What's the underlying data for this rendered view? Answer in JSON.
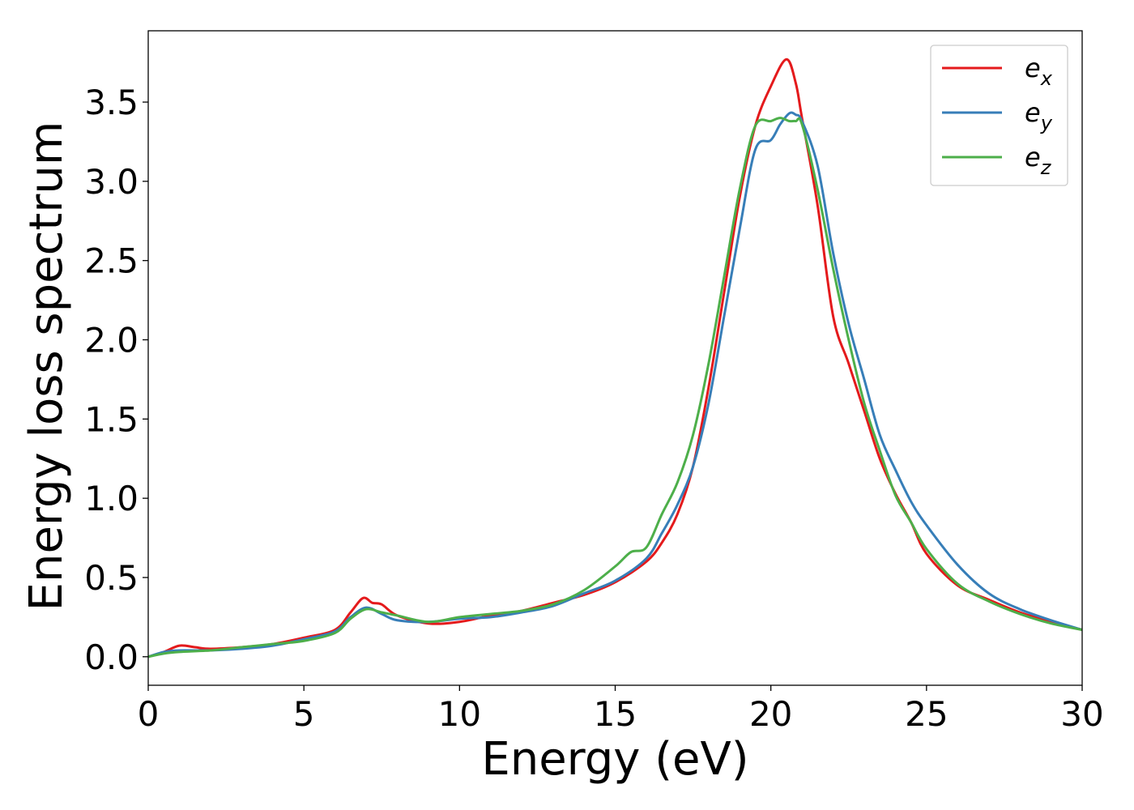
{
  "chart_data": {
    "type": "line",
    "title": "",
    "xlabel": "Energy (eV)",
    "ylabel": "Energy loss spectrum",
    "xlim": [
      0,
      30
    ],
    "ylim": [
      -0.18,
      3.95
    ],
    "xticks": [
      0,
      5,
      10,
      15,
      20,
      25,
      30
    ],
    "xtick_labels": [
      "0",
      "5",
      "10",
      "15",
      "20",
      "25",
      "30"
    ],
    "yticks": [
      0.0,
      0.5,
      1.0,
      1.5,
      2.0,
      2.5,
      3.0,
      3.5
    ],
    "ytick_labels": [
      "0.0",
      "0.5",
      "1.0",
      "1.5",
      "2.0",
      "2.5",
      "3.0",
      "3.5"
    ],
    "grid": false,
    "legend_position": "top-right",
    "series": [
      {
        "name": "e_x",
        "label_base": "e",
        "label_sub": "x",
        "color": "#e41a1c",
        "x": [
          0,
          0.5,
          1.0,
          1.5,
          2,
          3,
          4,
          5,
          6,
          6.5,
          6.9,
          7.2,
          7.5,
          8,
          9,
          10,
          11,
          12,
          13,
          14,
          15,
          16,
          16.5,
          17,
          17.5,
          18,
          18.5,
          19,
          19.5,
          20,
          20.5,
          20.8,
          21,
          21.5,
          22,
          22.5,
          23,
          23.5,
          24,
          24.5,
          25,
          26,
          27,
          28,
          29,
          30
        ],
        "y": [
          0.0,
          0.03,
          0.07,
          0.06,
          0.05,
          0.06,
          0.08,
          0.12,
          0.17,
          0.28,
          0.37,
          0.34,
          0.33,
          0.26,
          0.21,
          0.22,
          0.26,
          0.29,
          0.34,
          0.39,
          0.47,
          0.6,
          0.72,
          0.9,
          1.2,
          1.7,
          2.3,
          2.9,
          3.35,
          3.6,
          3.77,
          3.62,
          3.4,
          2.85,
          2.15,
          1.85,
          1.55,
          1.25,
          1.03,
          0.85,
          0.65,
          0.45,
          0.36,
          0.28,
          0.22,
          0.17
        ]
      },
      {
        "name": "e_y",
        "label_base": "e",
        "label_sub": "y",
        "color": "#377eb8",
        "x": [
          0,
          0.5,
          1.0,
          2,
          3,
          4,
          5,
          6,
          6.5,
          7.0,
          7.5,
          8,
          9,
          10,
          11,
          12,
          13,
          14,
          15,
          16,
          16.5,
          17,
          17.5,
          18,
          18.5,
          19,
          19.5,
          20,
          20.3,
          20.6,
          20.8,
          21,
          21.5,
          22,
          22.5,
          23,
          23.5,
          24,
          24.5,
          25,
          26,
          27,
          28,
          29,
          30
        ],
        "y": [
          0.0,
          0.03,
          0.04,
          0.04,
          0.05,
          0.07,
          0.11,
          0.16,
          0.25,
          0.31,
          0.27,
          0.23,
          0.22,
          0.24,
          0.25,
          0.28,
          0.32,
          0.4,
          0.48,
          0.62,
          0.78,
          0.96,
          1.2,
          1.6,
          2.15,
          2.7,
          3.2,
          3.26,
          3.36,
          3.43,
          3.42,
          3.38,
          3.1,
          2.55,
          2.1,
          1.75,
          1.4,
          1.18,
          0.98,
          0.83,
          0.58,
          0.4,
          0.3,
          0.23,
          0.17
        ]
      },
      {
        "name": "e_z",
        "label_base": "e",
        "label_sub": "z",
        "color": "#4daf4a",
        "x": [
          0,
          0.5,
          1.0,
          2,
          3,
          4,
          5,
          6,
          6.5,
          7.0,
          7.5,
          8,
          9,
          10,
          11,
          12,
          13,
          14,
          15,
          15.5,
          16,
          16.5,
          17,
          17.5,
          18,
          18.5,
          19,
          19.5,
          20,
          20.3,
          20.6,
          20.8,
          21,
          21.5,
          22,
          22.5,
          23,
          23.5,
          24,
          24.5,
          25,
          26,
          27,
          28,
          29,
          30
        ],
        "y": [
          0.0,
          0.02,
          0.03,
          0.04,
          0.06,
          0.08,
          0.1,
          0.15,
          0.24,
          0.3,
          0.28,
          0.26,
          0.22,
          0.25,
          0.27,
          0.29,
          0.33,
          0.42,
          0.57,
          0.66,
          0.69,
          0.9,
          1.1,
          1.4,
          1.85,
          2.4,
          2.95,
          3.35,
          3.38,
          3.4,
          3.38,
          3.38,
          3.36,
          2.95,
          2.45,
          2.0,
          1.6,
          1.3,
          1.02,
          0.85,
          0.68,
          0.46,
          0.35,
          0.27,
          0.21,
          0.17
        ]
      }
    ]
  }
}
